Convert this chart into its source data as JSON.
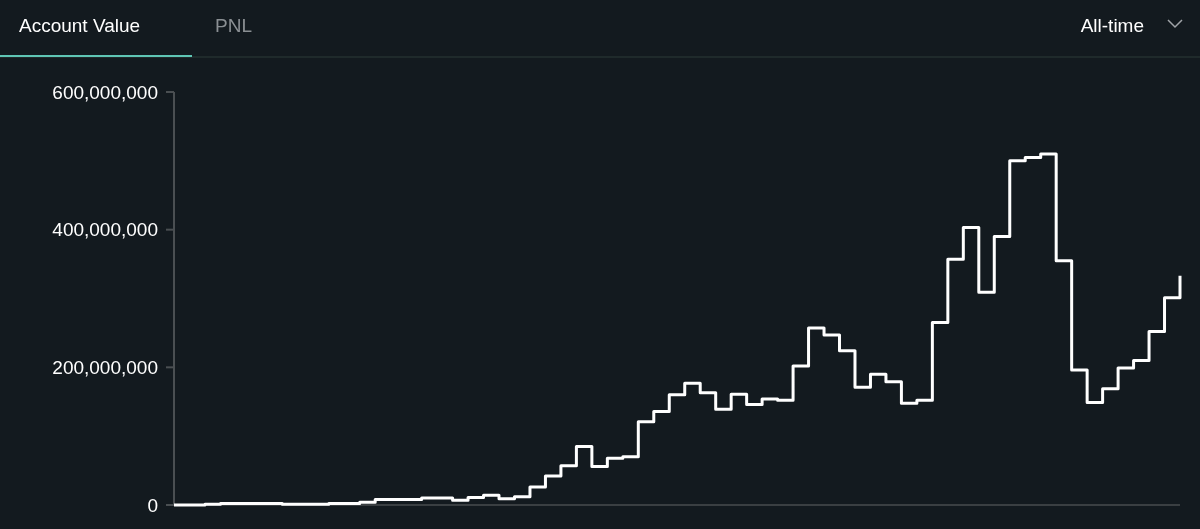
{
  "chart_data": {
    "type": "step",
    "annotations": [
      "Account Value",
      "PNL",
      "All-time"
    ],
    "categories": [
      null,
      null,
      null,
      null,
      null,
      null,
      null,
      null,
      null,
      null,
      null,
      null,
      null,
      null,
      null,
      null,
      null,
      null,
      null,
      null,
      null,
      null,
      null,
      null,
      null,
      null,
      null,
      null,
      null,
      null,
      null,
      null,
      null,
      null,
      null,
      null,
      null,
      null,
      null,
      null,
      null,
      null,
      null,
      null,
      null,
      null,
      null,
      null,
      null,
      null,
      null,
      null,
      null,
      null,
      null,
      null,
      null,
      null,
      null,
      null,
      null,
      null,
      null,
      null,
      null,
      null
    ],
    "series": [
      {
        "color": "#ffffff",
        "values": [
          0,
          0,
          1000000,
          2000000,
          2000000,
          2000000,
          2000000,
          1000000,
          1000000,
          1000000,
          2000000,
          2000000,
          4000000,
          8000000,
          8000000,
          8000000,
          10000000,
          10000000,
          7000000,
          11000000,
          14000000,
          9000000,
          12000000,
          26000000,
          42000000,
          57000000,
          85000000,
          56000000,
          68000000,
          70000000,
          121000000,
          136000000,
          160000000,
          177000000,
          163000000,
          139000000,
          161000000,
          146000000,
          154000000,
          152000000,
          202000000,
          257000000,
          247000000,
          224000000,
          171000000,
          190000000,
          179000000,
          148000000,
          152000000,
          265000000,
          357000000,
          403000000,
          309000000,
          390000000,
          500000000,
          505000000,
          510000000,
          355000000,
          196000000,
          149000000,
          169000000,
          199000000,
          210000000,
          252000000,
          301000000,
          333000000
        ]
      }
    ],
    "ylim": [
      0,
      600000000
    ],
    "yticks": [
      {
        "value": 0,
        "label": "0"
      },
      {
        "value": 200000000,
        "label": "200,000,000"
      },
      {
        "value": 400000000,
        "label": "400,000,000"
      },
      {
        "value": 600000000,
        "label": "600,000,000"
      }
    ],
    "grid": false,
    "line_style": "solid"
  }
}
